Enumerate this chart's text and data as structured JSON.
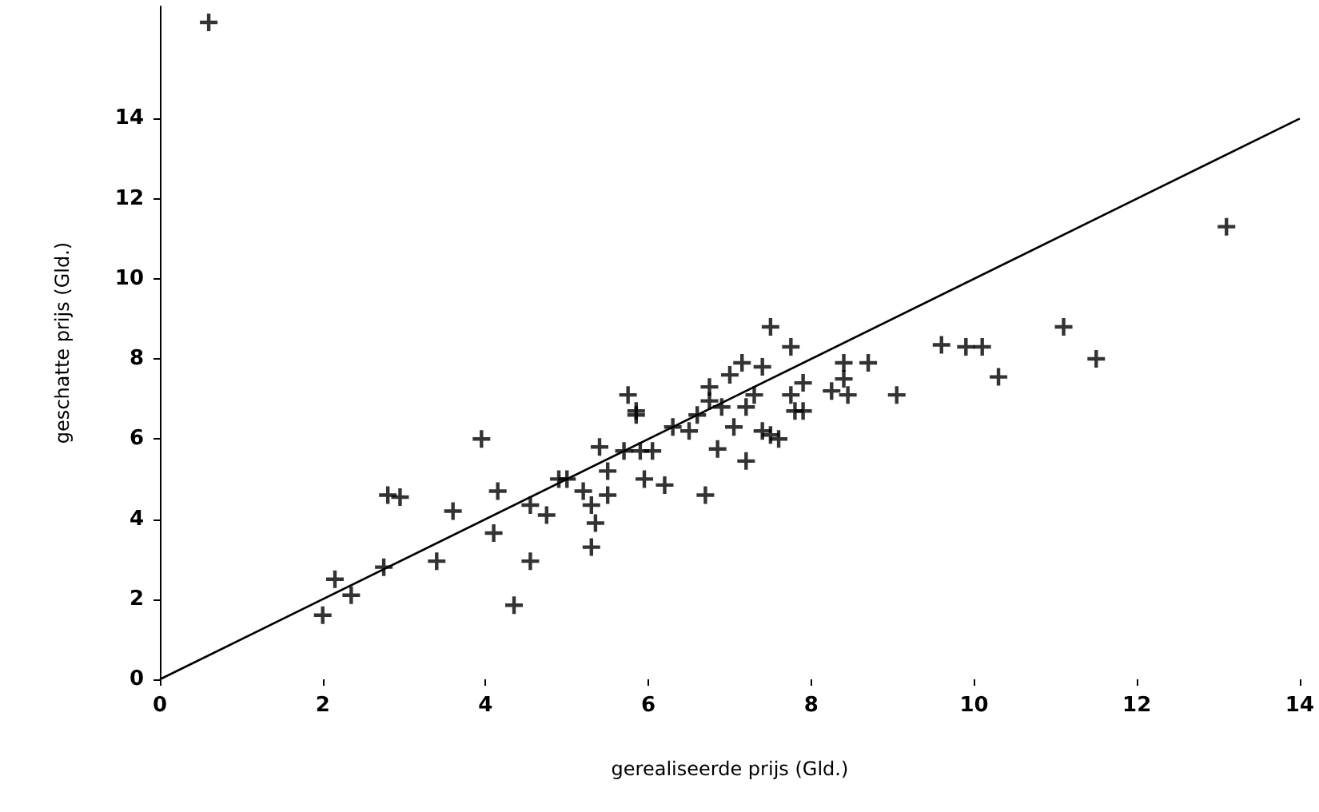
{
  "chart_data": {
    "type": "scatter",
    "xlabel": "gerealiseerde prijs (Gld.)",
    "ylabel": "geschatte prijs (Gld.)",
    "xlim": [
      0,
      14
    ],
    "xticks": [
      0,
      2,
      4,
      6,
      8,
      10,
      12,
      14
    ],
    "ylim": [
      0,
      16.8
    ],
    "yticks": [
      0,
      2,
      4,
      6,
      8,
      10,
      12,
      14
    ],
    "grid": false,
    "series": [
      {
        "marker": "cross",
        "color": "#000000",
        "x": [
          2.0,
          2.15,
          2.35,
          2.75,
          2.8,
          2.95,
          3.4,
          3.6,
          3.95,
          4.1,
          4.15,
          4.35,
          4.55,
          4.55,
          4.75,
          4.9,
          5.0,
          5.2,
          5.3,
          5.3,
          5.35,
          5.4,
          5.5,
          5.5,
          5.7,
          5.75,
          5.85,
          5.85,
          5.9,
          5.95,
          6.05,
          6.2,
          6.3,
          6.5,
          6.6,
          6.7,
          6.75,
          6.75,
          6.85,
          6.9,
          7.0,
          7.05,
          7.15,
          7.2,
          7.2,
          7.3,
          7.4,
          7.4,
          7.5,
          7.5,
          7.6,
          7.75,
          7.75,
          7.8,
          7.9,
          7.9,
          8.25,
          8.4,
          8.4,
          8.45,
          8.7,
          9.05,
          9.6,
          9.9,
          10.1,
          10.3,
          11.1,
          11.5,
          13.1,
          0.6
        ],
        "values": [
          1.6,
          2.5,
          2.1,
          2.8,
          4.6,
          4.55,
          2.95,
          4.2,
          6.0,
          3.65,
          4.7,
          1.85,
          4.35,
          2.95,
          4.1,
          5.0,
          5.0,
          4.7,
          4.35,
          3.3,
          3.9,
          5.8,
          5.2,
          4.6,
          5.7,
          7.1,
          6.6,
          6.7,
          5.7,
          5.0,
          5.7,
          4.85,
          6.3,
          6.2,
          6.6,
          4.6,
          7.3,
          6.95,
          5.75,
          6.8,
          7.6,
          6.3,
          7.9,
          5.45,
          6.8,
          7.1,
          7.8,
          6.2,
          8.8,
          6.1,
          6.0,
          8.3,
          7.1,
          6.7,
          7.4,
          6.7,
          7.2,
          7.5,
          7.9,
          7.1,
          7.9,
          7.1,
          8.35,
          8.3,
          8.3,
          7.55,
          8.8,
          8.0,
          11.3,
          16.4
        ]
      },
      {
        "type": "line",
        "marker": "none",
        "line_style": "solid",
        "color": "#000000",
        "x": [
          0,
          14
        ],
        "values": [
          0,
          14
        ]
      }
    ]
  }
}
